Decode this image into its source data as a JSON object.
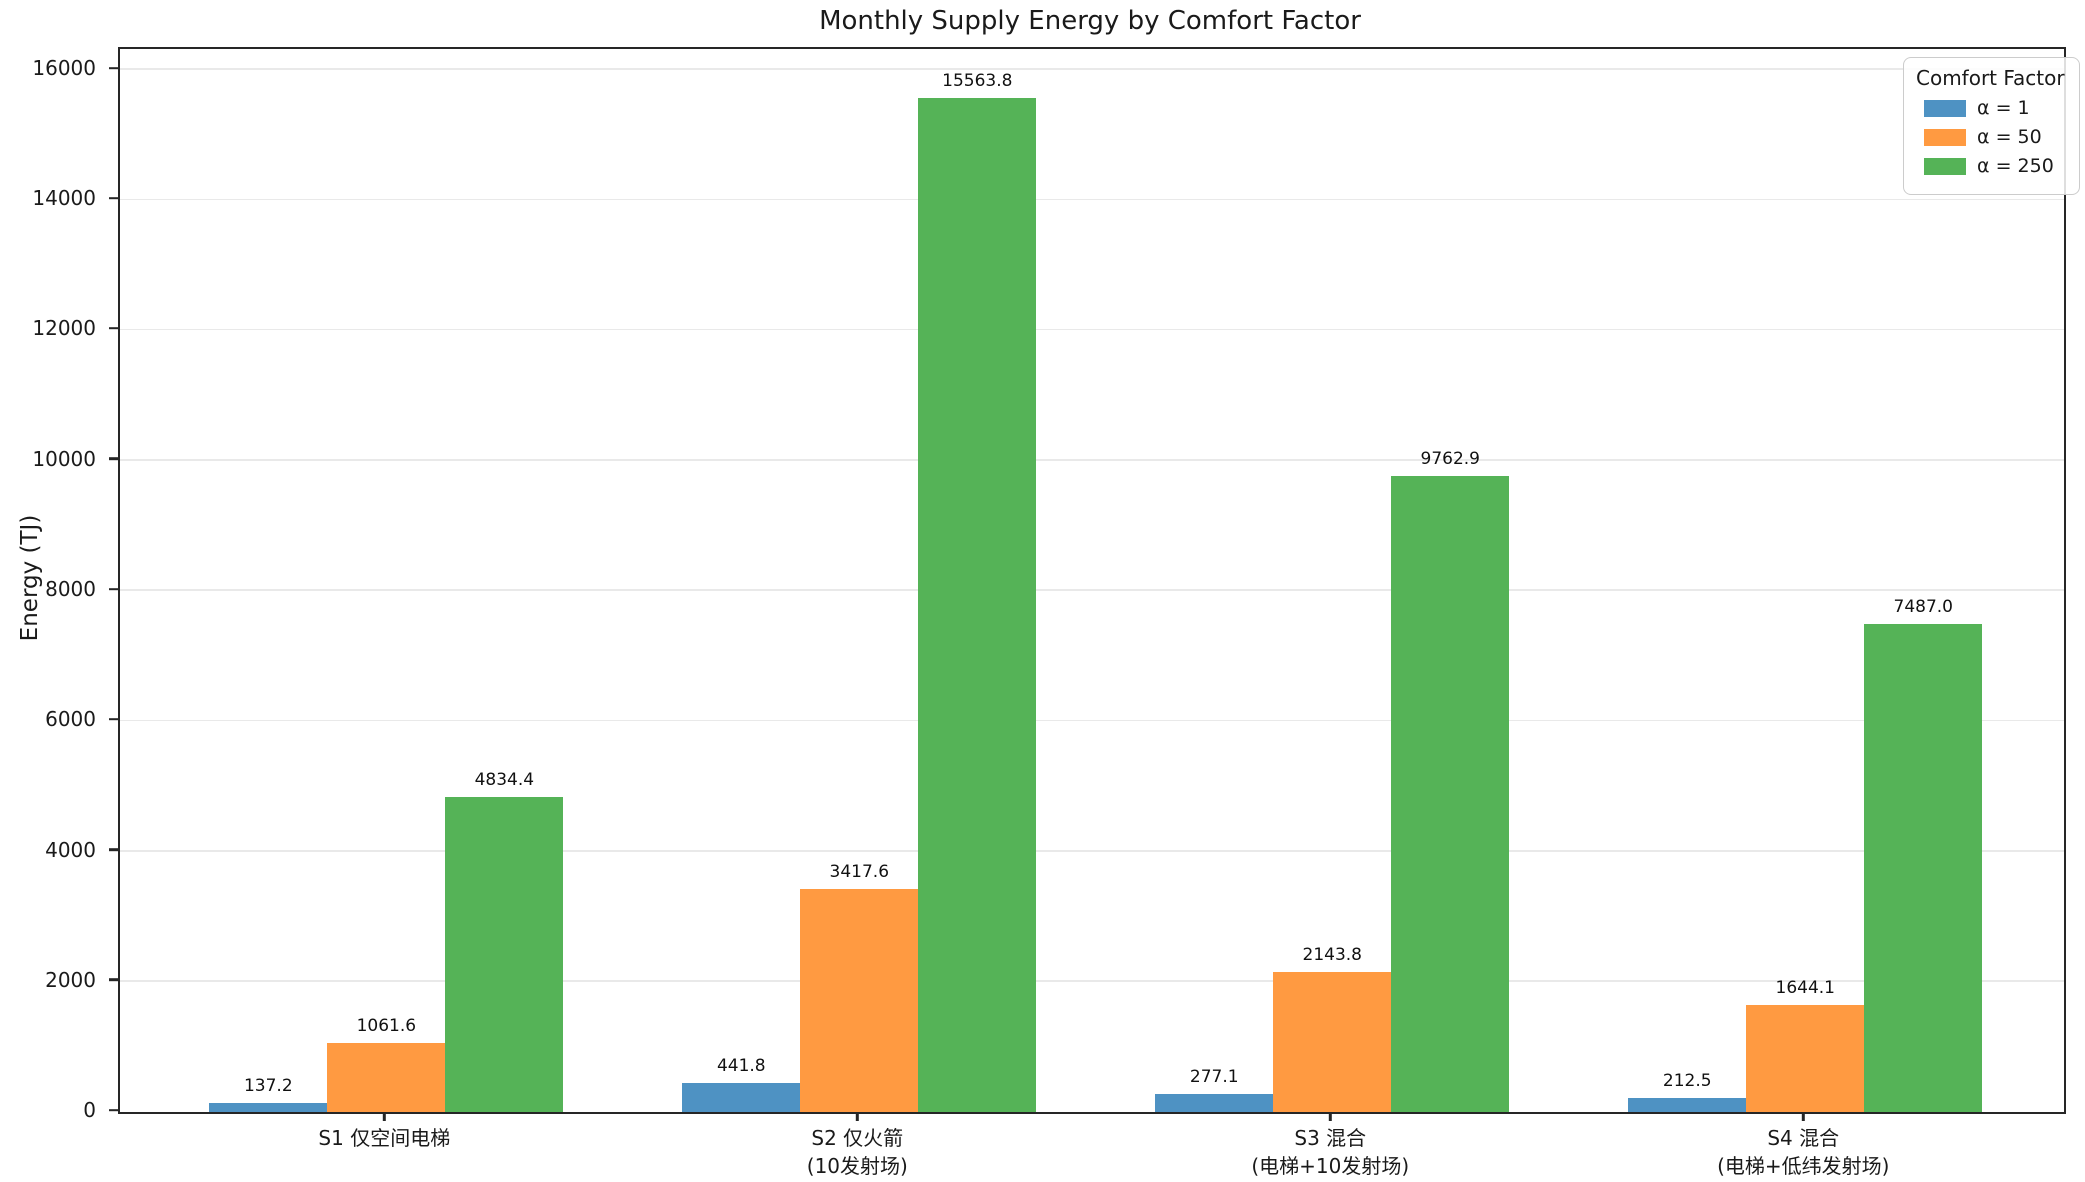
{
  "chart_data": {
    "type": "bar",
    "title": "Monthly Supply Energy by Comfort Factor",
    "ylabel": "Energy (TJ)",
    "ylim": [
      0,
      16322
    ],
    "yticks": [
      0,
      2000,
      4000,
      6000,
      8000,
      10000,
      12000,
      14000,
      16000
    ],
    "grid": "horizontal",
    "legend": {
      "title": "Comfort Factor",
      "position": "upper right"
    },
    "categories": [
      "S1 仅空间电梯",
      "S2 仅火箭\n(10发射场)",
      "S3 混合\n(电梯+10发射场)",
      "S4 混合\n(电梯+低纬发射场)"
    ],
    "series": [
      {
        "name": "α = 1",
        "color": "#4e92c3",
        "values": [
          137.2,
          441.8,
          277.1,
          212.5
        ]
      },
      {
        "name": "α = 50",
        "color": "#ff9a41",
        "values": [
          1061.6,
          3417.6,
          2143.8,
          1644.1
        ]
      },
      {
        "name": "α = 250",
        "color": "#55b357",
        "values": [
          4834.4,
          15563.8,
          9762.9,
          7487.0
        ]
      }
    ],
    "bar_value_labels": true
  }
}
